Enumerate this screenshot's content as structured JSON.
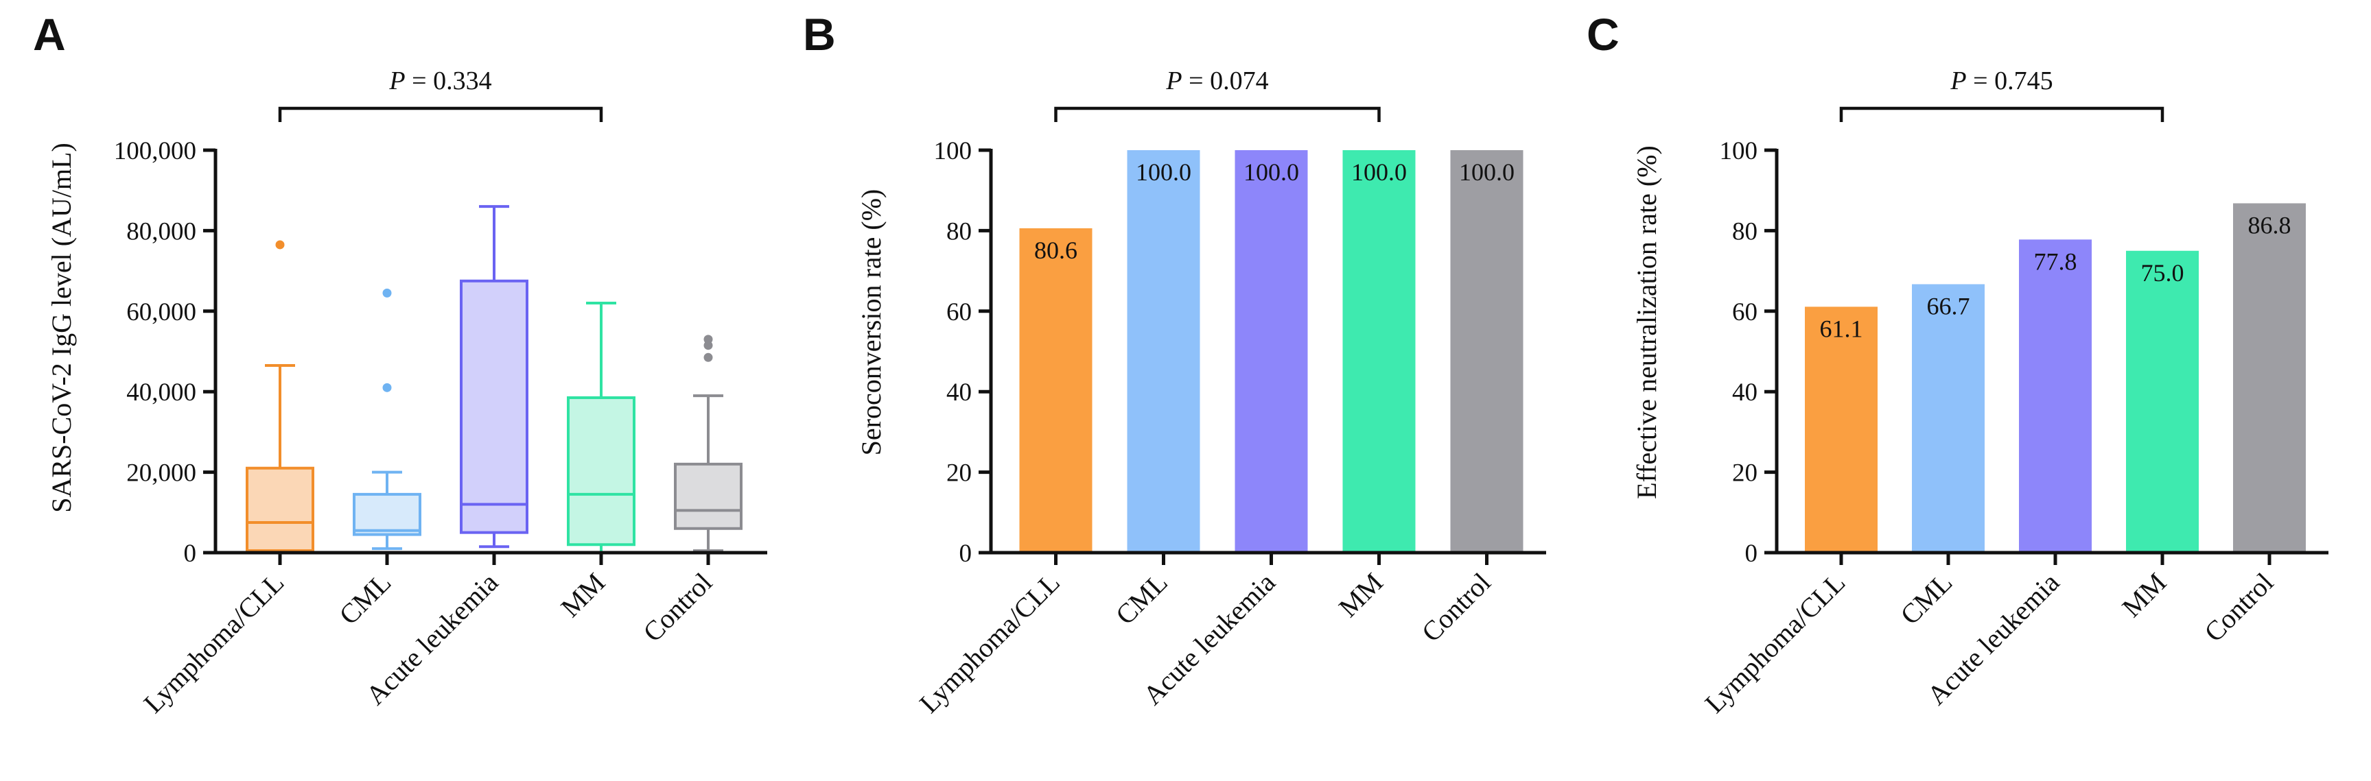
{
  "chart_data": [
    {
      "panel": "A",
      "type": "box",
      "ylabel": "SARS-CoV-2 IgG level (AU/mL)",
      "ylim": [
        0,
        100000
      ],
      "yticks": [
        0,
        20000,
        40000,
        60000,
        80000,
        100000
      ],
      "ytick_labels": [
        "0",
        "20,000",
        "40,000",
        "60,000",
        "80,000",
        "100,000"
      ],
      "categories": [
        "Lymphoma/CLL",
        "CML",
        "Acute leukemia",
        "MM",
        "Control"
      ],
      "colors": [
        "#F28E2B",
        "#6FB3F2",
        "#6A63F2",
        "#2FE3A3",
        "#8C8C91"
      ],
      "fills": [
        "#FBD7B6",
        "#D7EAFB",
        "#D2D0FB",
        "#C4F6E4",
        "#DCDCDE"
      ],
      "boxes": [
        {
          "whisker_low": 0,
          "q1": 500,
          "median": 7500,
          "q3": 21000,
          "whisker_high": 46500,
          "outliers": [
            76500
          ]
        },
        {
          "whisker_low": 1000,
          "q1": 4500,
          "median": 5500,
          "q3": 14500,
          "whisker_high": 20000,
          "outliers": [
            41000,
            64500
          ]
        },
        {
          "whisker_low": 1500,
          "q1": 5000,
          "median": 12000,
          "q3": 67500,
          "whisker_high": 86000,
          "outliers": []
        },
        {
          "whisker_low": 0,
          "q1": 2000,
          "median": 14500,
          "q3": 38500,
          "whisker_high": 62000,
          "outliers": []
        },
        {
          "whisker_low": 500,
          "q1": 6000,
          "median": 10500,
          "q3": 22000,
          "whisker_high": 39000,
          "outliers": [
            48500,
            51500,
            53000
          ]
        }
      ],
      "comparison": {
        "label_p": "P",
        "label_rest": " = 0.334",
        "from": "Lymphoma/CLL",
        "to": "MM"
      }
    },
    {
      "panel": "B",
      "type": "bar",
      "ylabel": "Seroconversion rate (%)",
      "ylim": [
        0,
        100
      ],
      "yticks": [
        0,
        20,
        40,
        60,
        80,
        100
      ],
      "ytick_labels": [
        "0",
        "20",
        "40",
        "60",
        "80",
        "100"
      ],
      "categories": [
        "Lymphoma/CLL",
        "CML",
        "Acute leukemia",
        "MM",
        "Control"
      ],
      "values": [
        80.6,
        100.0,
        100.0,
        100.0,
        100.0
      ],
      "value_labels": [
        "80.6",
        "100.0",
        "100.0",
        "100.0",
        "100.0"
      ],
      "colors": [
        "#FA9F41",
        "#8FC1FA",
        "#8D86FA",
        "#3EEAAF",
        "#9E9EA3"
      ],
      "comparison": {
        "label_p": "P",
        "label_rest": " = 0.074",
        "from": "Lymphoma/CLL",
        "to": "MM"
      }
    },
    {
      "panel": "C",
      "type": "bar",
      "ylabel": "Effective neutralization rate (%)",
      "ylim": [
        0,
        100
      ],
      "yticks": [
        0,
        20,
        40,
        60,
        80,
        100
      ],
      "ytick_labels": [
        "0",
        "20",
        "40",
        "60",
        "80",
        "100"
      ],
      "categories": [
        "Lymphoma/CLL",
        "CML",
        "Acute leukemia",
        "MM",
        "Control"
      ],
      "values": [
        61.1,
        66.7,
        77.8,
        75.0,
        86.8
      ],
      "value_labels": [
        "61.1",
        "66.7",
        "77.8",
        "75.0",
        "86.8"
      ],
      "colors": [
        "#FA9F41",
        "#8FC1FA",
        "#8D86FA",
        "#3EEAAF",
        "#9E9EA3"
      ],
      "comparison": {
        "label_p": "P",
        "label_rest": " = 0.745",
        "from": "Lymphoma/CLL",
        "to": "MM"
      }
    }
  ]
}
